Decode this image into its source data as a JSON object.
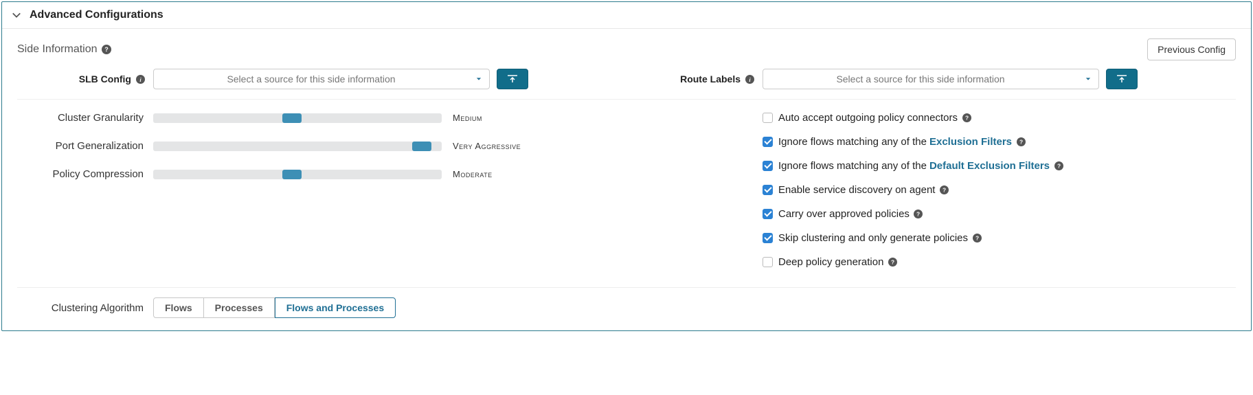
{
  "panel": {
    "title": "Advanced Configurations"
  },
  "sideInfo": {
    "title": "Side Information",
    "previousConfigLabel": "Previous Config"
  },
  "slbConfig": {
    "label": "SLB Config",
    "placeholder": "Select a source for this side information"
  },
  "routeLabels": {
    "label": "Route Labels",
    "placeholder": "Select a source for this side information"
  },
  "sliders": {
    "clusterGranularity": {
      "label": "Cluster Granularity",
      "valueLabel": "Medium",
      "thumbPct": 48
    },
    "portGeneralization": {
      "label": "Port Generalization",
      "valueLabel": "Very Aggressive",
      "thumbPct": 93
    },
    "policyCompression": {
      "label": "Policy Compression",
      "valueLabel": "Moderate",
      "thumbPct": 48
    }
  },
  "checks": {
    "autoAccept": {
      "label": "Auto accept outgoing policy connectors",
      "checked": false
    },
    "ignoreExclusion": {
      "prefix": "Ignore flows matching any of the",
      "link": "Exclusion Filters",
      "checked": true
    },
    "ignoreDefaultExclusion": {
      "prefix": "Ignore flows matching any of the",
      "link": "Default Exclusion Filters",
      "checked": true
    },
    "enableService": {
      "label": "Enable service discovery on agent",
      "checked": true
    },
    "carryOver": {
      "label": "Carry over approved policies",
      "checked": true
    },
    "skipClustering": {
      "label": "Skip clustering and only generate policies",
      "checked": true
    },
    "deepPolicy": {
      "label": "Deep policy generation",
      "checked": false
    }
  },
  "clusterAlg": {
    "label": "Clustering Algorithm",
    "options": [
      "Flows",
      "Processes",
      "Flows and Processes"
    ],
    "activeIndex": 2
  },
  "colors": {
    "accent": "#1f6f94",
    "uploadBg": "#116d8a",
    "sliderThumb": "#3d8fb5",
    "checkboxChecked": "#2b82d4",
    "panelBorder": "#2a7a8c"
  }
}
